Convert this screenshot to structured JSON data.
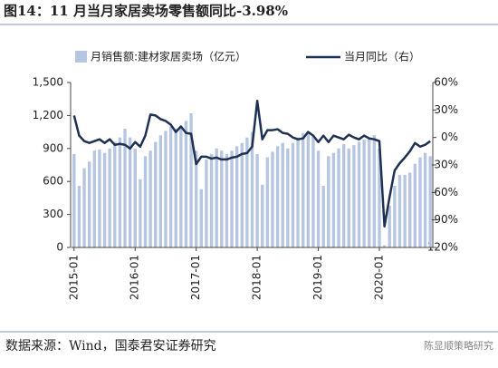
{
  "chart_data": {
    "type": "combo",
    "title": "图14：11 月当月家居卖场零售额同比-3.98%",
    "source": "数据来源：Wind，国泰君安证券研究",
    "watermark": "陈显顺策略研究",
    "categories": [
      "2015-01",
      null,
      null,
      null,
      null,
      null,
      null,
      null,
      null,
      null,
      null,
      null,
      "2016-01",
      null,
      null,
      null,
      null,
      null,
      null,
      null,
      null,
      null,
      null,
      null,
      "2017-01",
      null,
      null,
      null,
      null,
      null,
      null,
      null,
      null,
      null,
      null,
      null,
      "2018-01",
      null,
      null,
      null,
      null,
      null,
      null,
      null,
      null,
      null,
      null,
      null,
      "2019-01",
      null,
      null,
      null,
      null,
      null,
      null,
      null,
      null,
      null,
      null,
      null,
      "2020-01",
      null,
      null,
      null,
      null,
      null,
      null,
      null,
      null,
      null,
      null
    ],
    "series": [
      {
        "name": "月销售额:建材家居卖场（亿元）",
        "type": "bar",
        "color": "#b7c6e0",
        "values": [
          850,
          560,
          720,
          780,
          880,
          890,
          860,
          900,
          960,
          1000,
          1080,
          1000,
          900,
          620,
          830,
          880,
          960,
          1020,
          1060,
          1100,
          1080,
          1100,
          1150,
          1220,
          880,
          530,
          800,
          850,
          900,
          880,
          850,
          880,
          920,
          950,
          1000,
          1050,
          850,
          570,
          820,
          870,
          920,
          950,
          900,
          950,
          1000,
          1040,
          1050,
          1020,
          880,
          560,
          830,
          860,
          900,
          940,
          900,
          930,
          960,
          980,
          1000,
          1020,
          900,
          20,
          380,
          560,
          660,
          660,
          680,
          760,
          820,
          860,
          830
        ]
      },
      {
        "name": "当月同比（右）",
        "type": "line",
        "axis": "y2",
        "color": "#1f3152",
        "values": [
          24,
          2,
          -4,
          -6,
          -4,
          -2,
          -6,
          -2,
          -8,
          -7,
          -8,
          -12,
          -5,
          -10,
          2,
          25,
          24,
          20,
          18,
          14,
          6,
          12,
          5,
          4,
          -29,
          -21,
          -21,
          -23,
          -22,
          -24,
          -24,
          -22,
          -21,
          -18,
          -17,
          -10,
          40,
          -2,
          8,
          8,
          9,
          5,
          4,
          0,
          -2,
          -1,
          6,
          2,
          -5,
          2,
          -5,
          2,
          0,
          -2,
          3,
          0,
          -2,
          2,
          -1,
          -2,
          -4,
          -97,
          -65,
          -36,
          -28,
          -22,
          -15,
          -6,
          -10,
          -8,
          -3.98
        ]
      }
    ],
    "ylim": [
      0,
      1500
    ],
    "yticks": [
      0,
      300,
      600,
      900,
      {
        "value": 1200,
        "label": "1,200"
      },
      {
        "value": 1500,
        "label": "1,500"
      }
    ],
    "y2lim": [
      -120,
      60
    ],
    "y2ticks": [
      {
        "value": -120,
        "label": "-120%"
      },
      {
        "value": -90,
        "label": "-90%"
      },
      {
        "value": -60,
        "label": "-60%"
      },
      {
        "value": -30,
        "label": "-30%"
      },
      {
        "value": 0,
        "label": "0%"
      },
      {
        "value": 30,
        "label": "30%"
      },
      {
        "value": 60,
        "label": "60%"
      }
    ]
  }
}
